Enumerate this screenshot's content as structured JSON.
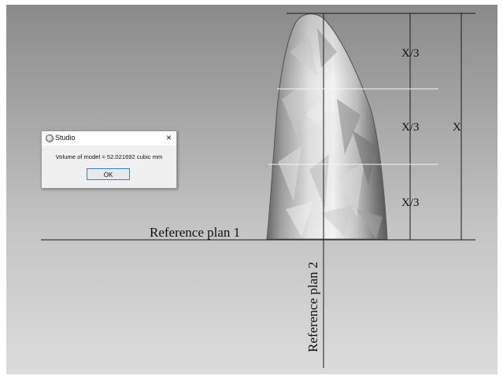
{
  "dialog": {
    "title": "Studio",
    "message": "Volume of model = 52.021692 cubic mm",
    "ok_label": "OK",
    "close_glyph": "×"
  },
  "annotations": {
    "third_top": "X/3",
    "third_middle": "X/3",
    "third_bottom": "X/3",
    "total": "X",
    "reference_plan_1": "Reference plan 1",
    "reference_plan_2": "Reference plan 2"
  },
  "icons": [
    "studio-app-icon",
    "close-icon"
  ],
  "colors": {
    "viewport_top": "#8a8a8a",
    "viewport_bottom": "#dcdcdc",
    "model_light": "#ececec",
    "model_dark": "#4a4a4a",
    "line": "#1a1a1a",
    "ok_border": "#3c7fb1"
  }
}
